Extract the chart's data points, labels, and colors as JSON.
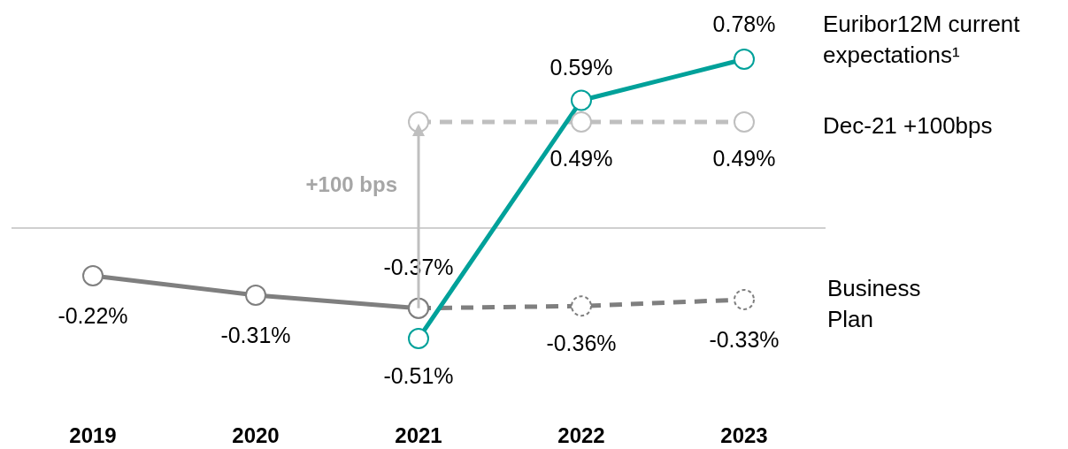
{
  "chart_data": {
    "type": "line",
    "categories": [
      "2019",
      "2020",
      "2021",
      "2022",
      "2023"
    ],
    "series": [
      {
        "name": "Euribor12M current expectations¹",
        "color": "#00a19a",
        "line_style": "solid",
        "values": [
          null,
          null,
          -0.51,
          0.59,
          0.78
        ],
        "value_labels": [
          null,
          null,
          "-0.51%",
          "0.59%",
          "0.78%"
        ]
      },
      {
        "name": "Dec-21 +100bps",
        "color": "#bfbfbf",
        "line_style": "dashed",
        "values": [
          null,
          null,
          0.49,
          0.49,
          0.49
        ],
        "value_labels": [
          null,
          null,
          null,
          "0.49%",
          "0.49%"
        ]
      },
      {
        "color": "#7f7f7f",
        "line_style": "solid",
        "values": [
          -0.22,
          -0.31,
          -0.37,
          null,
          null
        ],
        "value_labels": [
          "-0.22%",
          "-0.31%",
          "-0.37%",
          null,
          null
        ]
      },
      {
        "name": "Business Plan",
        "color": "#7f7f7f",
        "line_style": "dashed",
        "values": [
          null,
          null,
          -0.37,
          -0.36,
          -0.33
        ],
        "value_labels": [
          null,
          null,
          null,
          "-0.36%",
          "-0.33%"
        ]
      }
    ],
    "marker": "circle",
    "legend": false,
    "grid": false,
    "tick_labels": "x",
    "ref_lines": [
      {
        "axis": "y",
        "value": 0,
        "color": "#bfbfbf"
      }
    ],
    "annotations": [
      "+100 bps"
    ]
  }
}
